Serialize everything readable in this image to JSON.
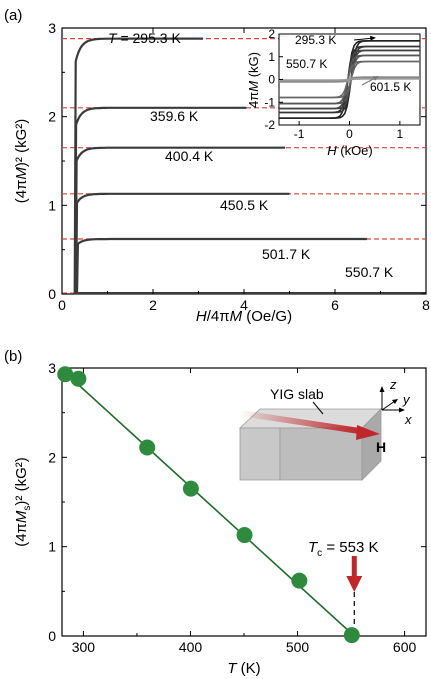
{
  "chart_data": [
    {
      "panel_label": "(a)",
      "type": "line",
      "xlabel_pre": "H",
      "xlabel_mid": "/4π",
      "xlabel_var": "M",
      "xlabel_post": " (Oe/G)",
      "ylabel_pre": "(4π",
      "ylabel_var": "M",
      "ylabel_post": ")² (kG²)",
      "xlim": [
        0,
        8
      ],
      "ylim": [
        0,
        3
      ],
      "xticks": [
        "0",
        "2",
        "4",
        "6",
        "8"
      ],
      "yticks": [
        "0",
        "1",
        "2",
        "3"
      ],
      "series": [
        {
          "name": "T = 295.3 K",
          "sat": 2.88,
          "xmax": 3.1,
          "x_onset": 0.3
        },
        {
          "name": "359.6 K",
          "sat": 2.1,
          "xmax": 4.05,
          "x_onset": 0.31
        },
        {
          "name": "400.4 K",
          "sat": 1.65,
          "xmax": 4.9,
          "x_onset": 0.32
        },
        {
          "name": "450.5 K",
          "sat": 1.13,
          "xmax": 5.0,
          "x_onset": 0.33
        },
        {
          "name": "501.7 K",
          "sat": 0.62,
          "xmax": 6.7,
          "x_onset": 0.35
        },
        {
          "name": "550.7 K",
          "sat": 0.01,
          "xmax": 8.0,
          "x_onset": 0.3
        }
      ],
      "fit_line_color": "#e0403a",
      "curve_color": "#3a3a3a",
      "inset": {
        "xlabel_var": "H",
        "xlabel_post": " (kOe)",
        "ylabel_pre": "4π",
        "ylabel_var": "M",
        "ylabel_post": " (kG)",
        "xlim": [
          -1.4,
          1.4
        ],
        "ylim": [
          -2,
          2
        ],
        "xticks": [
          "-1",
          "0",
          "1"
        ],
        "yticks": [
          "-2",
          "-1",
          "0",
          "1",
          "2"
        ],
        "labels": [
          "295.3 K",
          "550.7 K",
          "601.5 K"
        ],
        "loops": [
          {
            "ms": 1.7,
            "color": "#222222"
          },
          {
            "ms": 1.45,
            "color": "#333333"
          },
          {
            "ms": 1.28,
            "color": "#444444"
          },
          {
            "ms": 1.06,
            "color": "#555555"
          },
          {
            "ms": 0.79,
            "color": "#666666"
          },
          {
            "ms": 0.1,
            "color": "#8a8a8a"
          },
          {
            "ms": 0.03,
            "color": "#9a9a9a"
          }
        ]
      }
    },
    {
      "panel_label": "(b)",
      "type": "scatter",
      "xlabel_var": "T",
      "xlabel_post": " (K)",
      "ylabel_pre": "(4π",
      "ylabel_var": "M",
      "ylabel_sub": "s",
      "ylabel_post": ")² (kG²)",
      "xlim": [
        280,
        620
      ],
      "ylim": [
        0,
        3
      ],
      "xticks": [
        "300",
        "400",
        "500",
        "600"
      ],
      "yticks": [
        "0",
        "1",
        "2",
        "3"
      ],
      "points": [
        {
          "x": 283.0,
          "y": 2.93
        },
        {
          "x": 295.3,
          "y": 2.88
        },
        {
          "x": 359.6,
          "y": 2.11
        },
        {
          "x": 400.4,
          "y": 1.65
        },
        {
          "x": 450.5,
          "y": 1.13
        },
        {
          "x": 501.7,
          "y": 0.62
        },
        {
          "x": 550.7,
          "y": 0.01
        }
      ],
      "fit_line": [
        [
          280,
          2.98
        ],
        [
          553,
          0
        ]
      ],
      "point_color": "#2e8b3e",
      "line_color": "#1f6b2c",
      "tc_label_var": "T",
      "tc_label_sub": "c",
      "tc_label_post": " = 553 K",
      "tc_value": 553,
      "arrow_color": "#c0262a",
      "slab_label": "YIG slab",
      "field_label": "H",
      "axis_labels": [
        "z",
        "y",
        "x"
      ]
    }
  ]
}
